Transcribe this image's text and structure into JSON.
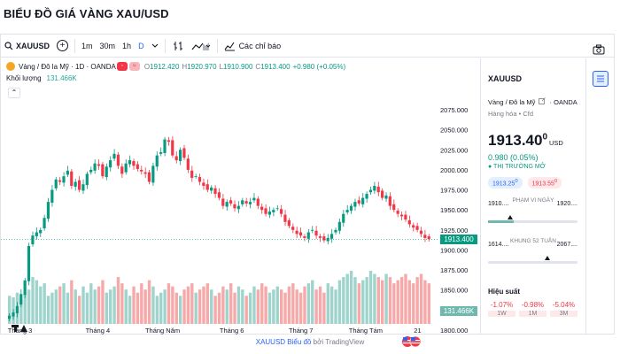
{
  "page": {
    "title": "BIỂU ĐỒ GIÁ VÀNG XAU/USD"
  },
  "toolbar": {
    "symbol": "XAUUSD",
    "intervals": [
      "1m",
      "30m",
      "1h",
      "D"
    ],
    "indicators_label": "Các chỉ báo",
    "icons": [
      "search-icon",
      "plus-circle-icon",
      "chevron-down-icon",
      "compare-icon",
      "chart-style-icon",
      "indicators-icon",
      "camera-icon"
    ]
  },
  "legend": {
    "title": "Vàng / Đô la Mỹ · 1D · OANDA",
    "open_label": "O",
    "open": "1912.420",
    "high_label": "H",
    "high": "1920.970",
    "low_label": "L",
    "low": "1910.900",
    "close_label": "C",
    "close": "1913.400",
    "change": "+0.980 (+0.05%)",
    "volume_label": "Khối lượng",
    "volume": "131.466K",
    "colors": {
      "up": "#089981",
      "down": "#f23645"
    }
  },
  "chart_data": {
    "type": "candlestick",
    "title": "",
    "xlabel": "",
    "ylabel": "",
    "ylim": [
      1800,
      2075
    ],
    "y_ticks": [
      "2075.000",
      "2050.000",
      "2025.000",
      "2000.000",
      "1975.000",
      "1950.000",
      "1925.000",
      "1900.000",
      "1875.000",
      "1850.000",
      "1825.000",
      "1800.000"
    ],
    "x_ticks": [
      "Tháng 3",
      "Tháng 4",
      "Tháng Năm",
      "Tháng 6",
      "Tháng 7",
      "Tháng Tám",
      "21"
    ],
    "last_price_label": "1913.400",
    "last_volume_label": "131.466K",
    "series": [
      {
        "name": "Price",
        "values": [
          1818,
          1822,
          1830,
          1845,
          1862,
          1905,
          1918,
          1922,
          1925,
          1940,
          1960,
          1975,
          1988,
          1985,
          1992,
          1999,
          1980,
          1985,
          1975,
          1982,
          1995,
          2000,
          2008,
          2005,
          1992,
          2004,
          2012,
          2020,
          2005,
          1995,
          2008,
          2012,
          2005,
          2001,
          1998,
          1995,
          1985,
          2005,
          2018,
          2022,
          2038,
          2035,
          2018,
          2012,
          2025,
          2015,
          2000,
          1990,
          1992,
          1985,
          1980,
          1975,
          1978,
          1970,
          1965,
          1955,
          1960,
          1958,
          1952,
          1955,
          1962,
          1958,
          1960,
          1965,
          1955,
          1950,
          1945,
          1948,
          1950,
          1952,
          1945,
          1935,
          1930,
          1925,
          1920,
          1918,
          1915,
          1922,
          1925,
          1918,
          1915,
          1912,
          1915,
          1920,
          1925,
          1935,
          1945,
          1950,
          1955,
          1960,
          1958,
          1965,
          1970,
          1975,
          1980,
          1972,
          1965,
          1968,
          1955,
          1950,
          1945,
          1942,
          1938,
          1932,
          1928,
          1925,
          1920,
          1915,
          1913.4
        ]
      }
    ],
    "volume": [
      18,
      17,
      20,
      16,
      19,
      22,
      30,
      28,
      24,
      26,
      18,
      20,
      22,
      24,
      26,
      20,
      28,
      22,
      18,
      24,
      20,
      26,
      22,
      24,
      28,
      20,
      22,
      24,
      30,
      26,
      22,
      18,
      24,
      20,
      26,
      22,
      28,
      24,
      18,
      20,
      22,
      26,
      24,
      20,
      18,
      22,
      24,
      26,
      20,
      22,
      24,
      26,
      22,
      18,
      20,
      24,
      22,
      26,
      20,
      24,
      22,
      18,
      20,
      24,
      22,
      26,
      24,
      20,
      22,
      24,
      22,
      20,
      24,
      26,
      22,
      20,
      24,
      26,
      28,
      22,
      24,
      20,
      26,
      24,
      22,
      28,
      30,
      32,
      34,
      30,
      26,
      28,
      30,
      34,
      32,
      30,
      28,
      32,
      30,
      26,
      28,
      30,
      32,
      28,
      26,
      30,
      32,
      28,
      26
    ]
  },
  "side_panel": {
    "symbol": "XAUUSD",
    "description": "Vàng / Đô la Mỹ",
    "broker": "OANDA",
    "type": "Hàng hóa • Cfd",
    "price_main": "1913.40",
    "price_sup": "0",
    "currency": "USD",
    "change": "0.980 (0.05%)",
    "market_status": "THỊ TRƯỜNG MỞ",
    "bid": "1913.25",
    "bid_sup": "0",
    "ask": "1913.55",
    "ask_sup": "0",
    "day_range": {
      "low": "1910....",
      "high": "1920....",
      "label": "PHẠM VI NGÀY",
      "position": 0.25
    },
    "week52_range": {
      "low": "1614....",
      "high": "2067....",
      "label": "KHUNG 52 TUẦN",
      "position": 0.66
    },
    "performance_title": "Hiệu suất",
    "performance": [
      {
        "value": "-1.07%",
        "label": "1W"
      },
      {
        "value": "-0.98%",
        "label": "1M"
      },
      {
        "value": "-5.04%",
        "label": "3M"
      }
    ]
  },
  "footer": {
    "link": "XAUUSD Biểu đồ",
    "by": "bởi TradingView"
  }
}
